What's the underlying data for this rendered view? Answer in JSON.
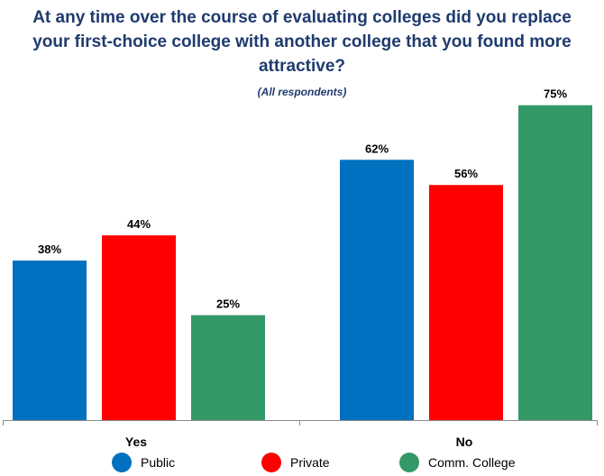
{
  "title": "At any time over the course of evaluating colleges did you replace your first-choice college with another college that you found more attractive?",
  "subtitle": "(All respondents)",
  "colors": {
    "public": "#0070c0",
    "private": "#ff0000",
    "comm_college": "#339966",
    "title": "#1f3b6e"
  },
  "legend": [
    {
      "name": "Public",
      "color": "#0070c0"
    },
    {
      "name": "Private",
      "color": "#ff0000"
    },
    {
      "name": "Comm. College",
      "color": "#339966"
    }
  ],
  "chart_data": {
    "type": "bar",
    "categories": [
      "Yes",
      "No"
    ],
    "series": [
      {
        "name": "Public",
        "values": [
          38,
          62
        ],
        "color": "#0070c0"
      },
      {
        "name": "Private",
        "values": [
          44,
          56
        ],
        "color": "#ff0000"
      },
      {
        "name": "Comm. College",
        "values": [
          25,
          75
        ],
        "color": "#339966"
      }
    ],
    "data_labels": [
      [
        "38%",
        "44%",
        "25%"
      ],
      [
        "62%",
        "56%",
        "75%"
      ]
    ],
    "ylim": [
      0,
      100
    ],
    "grid": false,
    "legend_position": "bottom"
  }
}
